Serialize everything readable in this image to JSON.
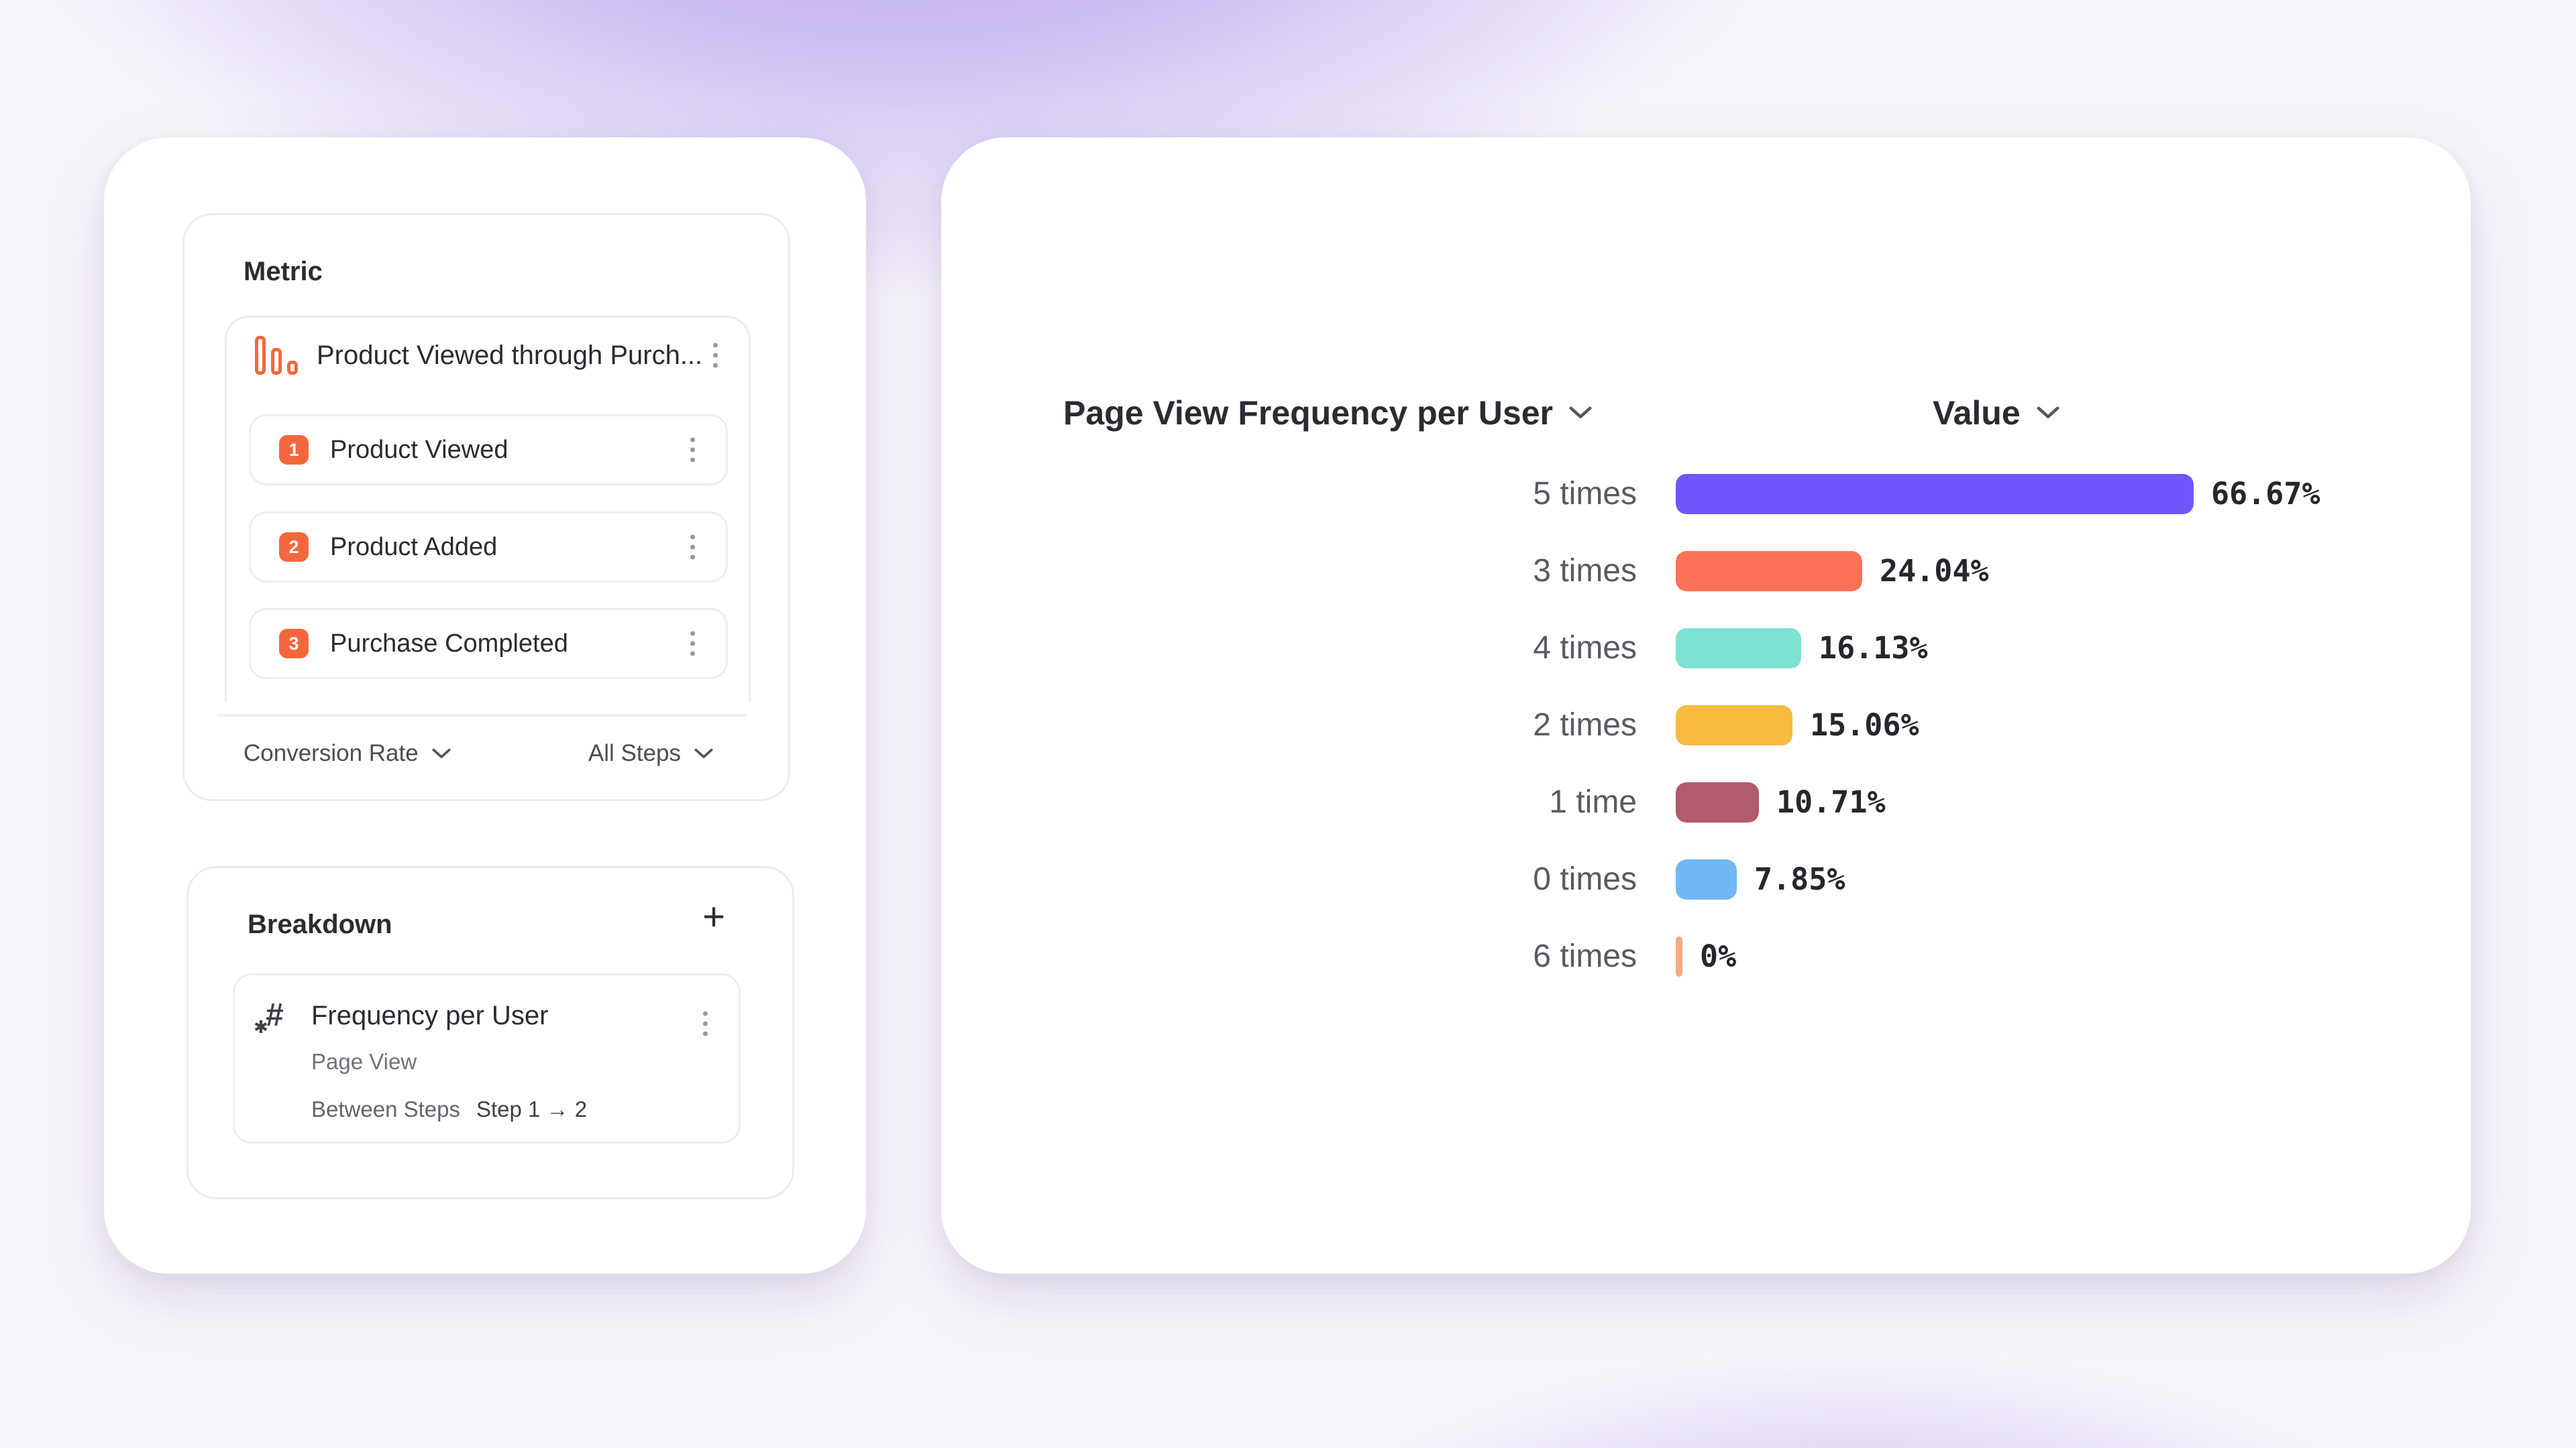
{
  "left_panel": {
    "metric": {
      "title": "Metric",
      "funnel": {
        "name": "Product Viewed through Purch...",
        "steps": [
          {
            "number": "1",
            "label": "Product Viewed"
          },
          {
            "number": "2",
            "label": "Product Added"
          },
          {
            "number": "3",
            "label": "Purchase Completed"
          }
        ]
      },
      "conversion_dropdown": "Conversion Rate",
      "steps_dropdown": "All Steps"
    },
    "breakdown": {
      "title": "Breakdown",
      "add_button": "+",
      "item": {
        "title": "Frequency per User",
        "event": "Page View",
        "between_steps_label": "Between Steps",
        "between_steps_value": "Step 1 → 2"
      }
    }
  },
  "chart_header": {
    "dimension": "Page View Frequency per User",
    "value": "Value"
  },
  "chart_data": {
    "type": "bar",
    "orientation": "horizontal",
    "title": "Page View Frequency per User",
    "value_header": "Value",
    "categories": [
      "5 times",
      "3 times",
      "4 times",
      "2 times",
      "1 time",
      "0 times",
      "6 times"
    ],
    "values": [
      66.67,
      24.04,
      16.13,
      15.06,
      10.71,
      7.85,
      0
    ],
    "value_labels": [
      "66.67%",
      "24.04%",
      "16.13%",
      "15.06%",
      "10.71%",
      "7.85%",
      "0%"
    ],
    "colors": [
      "#7155FB",
      "#FC7158",
      "#7EE2D1",
      "#F7BB41",
      "#B25A6E",
      "#70B8F3",
      "#F7A981"
    ],
    "xlim": [
      0,
      100
    ],
    "grid": false,
    "legend": false
  },
  "colors": {
    "accent_coral": "#F4673C",
    "text_dark": "#2B2B33",
    "text_medium": "#55555E",
    "panel_border": "#ECECEF",
    "background_glow": "#9A7BE8"
  }
}
